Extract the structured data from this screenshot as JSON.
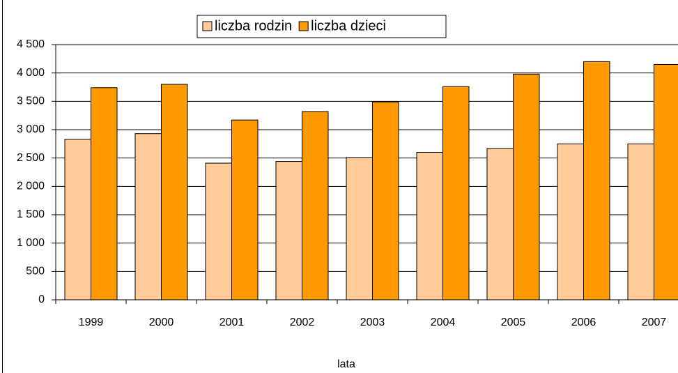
{
  "chart_data": {
    "type": "bar",
    "x_label": "lata",
    "categories": [
      "1999",
      "2000",
      "2001",
      "2002",
      "2003",
      "2004",
      "2005",
      "2006",
      "2007"
    ],
    "series": [
      {
        "name": "liczba rodzin",
        "color": "#FFCC99",
        "values": [
          2830,
          2930,
          2410,
          2440,
          2510,
          2600,
          2670,
          2750,
          2750
        ]
      },
      {
        "name": "liczba dzieci",
        "color": "#FF9900",
        "values": [
          3740,
          3800,
          3170,
          3320,
          3490,
          3760,
          3980,
          4200,
          4150
        ]
      }
    ],
    "ylim": [
      0,
      4500
    ],
    "yticks": [
      0,
      500,
      {
        "value": 1000,
        "label": "1 000"
      },
      {
        "value": 1500,
        "label": "1 500"
      },
      {
        "value": 2000,
        "label": "2 000"
      },
      {
        "value": 2500,
        "label": "2 500"
      },
      {
        "value": 3000,
        "label": "3 000"
      },
      {
        "value": 3500,
        "label": "3 500"
      },
      {
        "value": 4000,
        "label": "4 000"
      },
      {
        "value": 4500,
        "label": "4 500"
      }
    ],
    "grid": true,
    "legend": "top"
  }
}
